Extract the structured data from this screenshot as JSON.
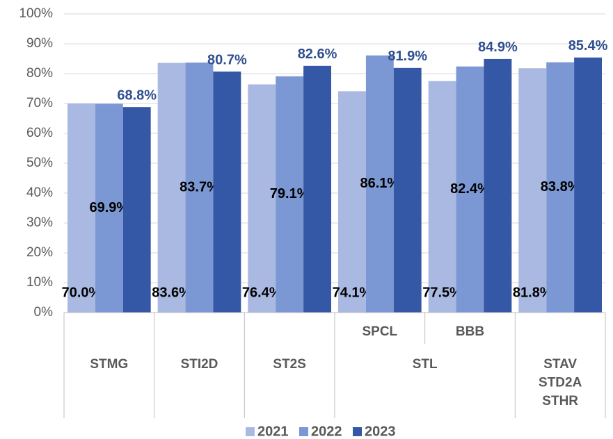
{
  "chart_data": {
    "type": "bar",
    "categories": [
      null,
      null,
      null,
      "SPCL",
      "BBB",
      null
    ],
    "groups": [
      {
        "label": [
          "STMG"
        ],
        "span": 1
      },
      {
        "label": [
          "STI2D"
        ],
        "span": 1
      },
      {
        "label": [
          "ST2S"
        ],
        "span": 1
      },
      {
        "label": [
          "STL"
        ],
        "span": 2
      },
      {
        "label": [
          "STAV",
          "STD2A",
          "STHR"
        ],
        "span": 1
      }
    ],
    "series": [
      {
        "name": "2021",
        "color": "#a9b9e2",
        "values": [
          70.0,
          83.6,
          76.4,
          74.1,
          77.5,
          81.8
        ],
        "value_labels": [
          "70.0%",
          "83.6%",
          "76.4%",
          "74.1%",
          "77.5%",
          "81.8%"
        ]
      },
      {
        "name": "2022",
        "color": "#7b98d4",
        "values": [
          69.9,
          83.7,
          79.1,
          86.1,
          82.4,
          83.8
        ],
        "value_labels": [
          "69.9%",
          "83.7%",
          "79.1%",
          "86.1%",
          "82.4%",
          "83.8%"
        ]
      },
      {
        "name": "2023",
        "color": "#3457a6",
        "values": [
          68.8,
          80.7,
          82.6,
          81.9,
          84.9,
          85.4
        ],
        "value_labels": [
          "68.8%",
          "80.7%",
          "82.6%",
          "81.9%",
          "84.9%",
          "85.4%"
        ]
      }
    ],
    "ylim": [
      0,
      100
    ],
    "yticks": [
      {
        "value": 0,
        "label": "0%"
      },
      {
        "value": 10,
        "label": "10%"
      },
      {
        "value": 20,
        "label": "20%"
      },
      {
        "value": 30,
        "label": "30%"
      },
      {
        "value": 40,
        "label": "40%"
      },
      {
        "value": 50,
        "label": "50%"
      },
      {
        "value": 60,
        "label": "60%"
      },
      {
        "value": 70,
        "label": "70%"
      },
      {
        "value": 80,
        "label": "80%"
      },
      {
        "value": 90,
        "label": "90%"
      },
      {
        "value": 100,
        "label": "100%"
      }
    ],
    "grid": true,
    "legend": "bottom"
  }
}
